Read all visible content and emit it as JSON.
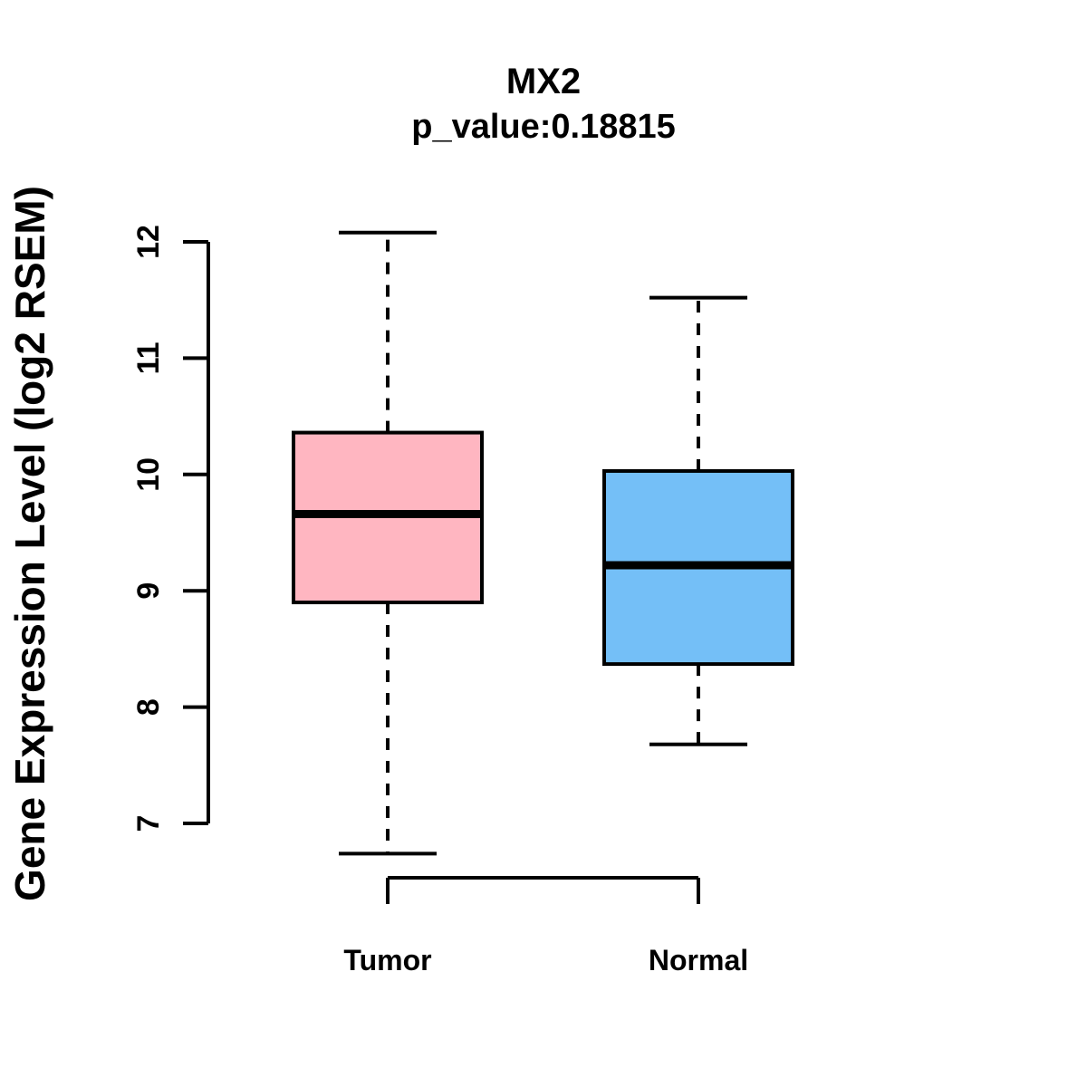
{
  "figure": {
    "title": "MX2",
    "subtitle": "p_value:0.18815",
    "ylabel": "Gene Expression Level (log2 RSEM)"
  },
  "chart_data": {
    "type": "boxplot",
    "title": "MX2",
    "subtitle": "p_value:0.18815",
    "ylabel": "Gene Expression Level (log2 RSEM)",
    "ylim": [
      7,
      12
    ],
    "yticks": [
      7,
      8,
      9,
      10,
      11,
      12
    ],
    "categories": [
      "Tumor",
      "Normal"
    ],
    "series": [
      {
        "name": "Tumor",
        "color": "#FFB6C1",
        "whisker_low": 6.74,
        "q1": 8.9,
        "median": 9.66,
        "q3": 10.36,
        "whisker_high": 12.08
      },
      {
        "name": "Normal",
        "color": "#74BFF7",
        "whisker_low": 7.68,
        "q1": 8.37,
        "median": 9.22,
        "q3": 10.03,
        "whisker_high": 11.52
      }
    ],
    "styles": {
      "box_border_color": "#000000",
      "whisker_style": "dashed",
      "grid": "off",
      "legend": "none"
    }
  }
}
